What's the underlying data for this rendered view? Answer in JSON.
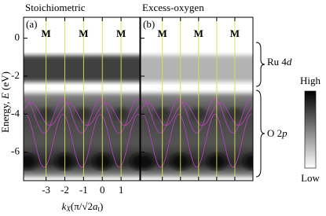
{
  "chart_data": [
    {
      "type": "intensity-map",
      "title": "Stoichiometric",
      "panel_label": "(a)",
      "xlim": [
        -4.2,
        2.0
      ],
      "xticks": [
        -3,
        -2,
        -1,
        0,
        1
      ],
      "ylim": [
        -7.5,
        1.1
      ],
      "yticks": [
        -6,
        -4,
        -2,
        0
      ],
      "top_ticks": [
        {
          "value": -3,
          "label": "M"
        },
        {
          "value": -1,
          "label": "M"
        },
        {
          "value": 1,
          "label": "M"
        }
      ],
      "ru_intensity": 0.75
    },
    {
      "type": "intensity-map",
      "title": "Excess-oxygen",
      "panel_label": "(b)",
      "xlim": [
        -4.2,
        2.0
      ],
      "xticks": [
        -3,
        -2,
        -1,
        0,
        1
      ],
      "top_ticks": [
        {
          "value": -3,
          "label": "M"
        },
        {
          "value": -1,
          "label": "M"
        },
        {
          "value": 1,
          "label": "M"
        }
      ],
      "ru_intensity": 0.3
    }
  ],
  "y_label": [
    "Energy, ",
    "E",
    " (eV)"
  ],
  "x_label": [
    "k",
    "X",
    "(π/√2",
    "a",
    "t",
    ")"
  ],
  "bands": [
    [
      "Ru 4",
      "d"
    ],
    [
      "O 2",
      "p"
    ]
  ],
  "colorbar": {
    "high": "High",
    "low": "Low"
  }
}
